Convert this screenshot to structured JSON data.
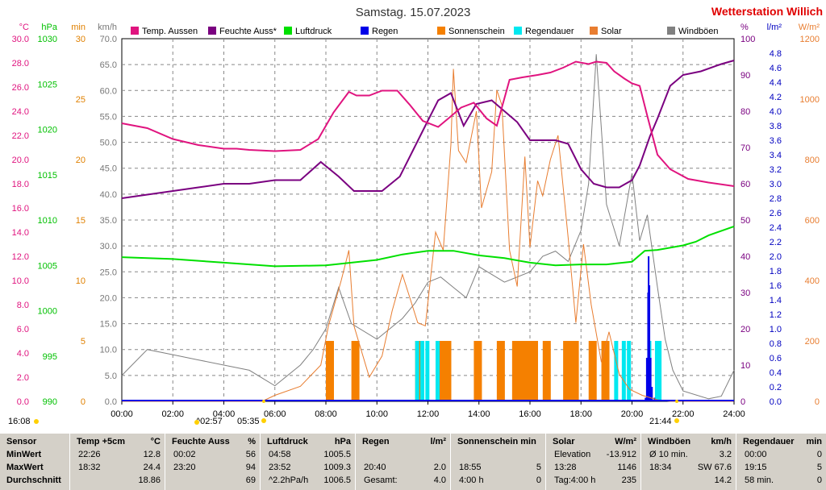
{
  "header": {
    "title": "Samstag. 15.07.2023",
    "station": "Wetterstation Willich"
  },
  "colors": {
    "temp": "#e0147f",
    "humidity": "#7a0080",
    "pressure": "#00e000",
    "rain": "#0000e8",
    "sunshine": "#f58000",
    "rainduration": "#00e8f0",
    "solar": "#e87d30",
    "gust": "#808080",
    "axis_c": "#e0147f",
    "axis_hpa": "#00c000",
    "axis_min": "#e08000",
    "axis_kmh": "#777777",
    "axis_pct": "#7a0080",
    "axis_lm2": "#0000c0",
    "axis_wm2": "#e87d30",
    "station": "#e00000"
  },
  "chart_data": {
    "type": "line",
    "legend": [
      {
        "label": "Temp. Aussen",
        "color": "#e0147f"
      },
      {
        "label": "Feuchte Auss*",
        "color": "#7a0080"
      },
      {
        "label": "Luftdruck",
        "color": "#00e000"
      },
      {
        "label": "Regen",
        "color": "#0000e8"
      },
      {
        "label": "Sonnenschein",
        "color": "#f58000"
      },
      {
        "label": "Regendauer",
        "color": "#00e8f0"
      },
      {
        "label": "Solar",
        "color": "#e87d30"
      },
      {
        "label": "Windböen",
        "color": "#808080"
      }
    ],
    "axes": {
      "c": {
        "unit": "°C",
        "ticks": [
          "0.0",
          "2.0",
          "4.0",
          "6.0",
          "8.0",
          "10.0",
          "12.0",
          "14.0",
          "16.0",
          "18.0",
          "20.0",
          "22.0",
          "24.0",
          "26.0",
          "28.0",
          "30.0"
        ]
      },
      "hpa": {
        "unit": "hPa",
        "ticks": [
          "990",
          "995",
          "1000",
          "1005",
          "1010",
          "1015",
          "1020",
          "1025",
          "1030"
        ]
      },
      "min": {
        "unit": "min",
        "ticks": [
          "0",
          "5",
          "10",
          "15",
          "20",
          "25",
          "30"
        ]
      },
      "kmh": {
        "unit": "km/h",
        "ticks": [
          "0.0",
          "5.0",
          "10.0",
          "15.0",
          "20.0",
          "25.0",
          "30.0",
          "35.0",
          "40.0",
          "45.0",
          "50.0",
          "55.0",
          "60.0",
          "65.0",
          "70.0"
        ]
      },
      "pct": {
        "unit": "%",
        "ticks": [
          "0",
          "10",
          "20",
          "30",
          "40",
          "50",
          "60",
          "70",
          "80",
          "90",
          "100"
        ]
      },
      "lm2": {
        "unit": "l/m²",
        "ticks": [
          "0.0",
          "0.2",
          "0.4",
          "0.6",
          "0.8",
          "1.0",
          "1.2",
          "1.4",
          "1.6",
          "1.8",
          "2.0",
          "2.2",
          "2.4",
          "2.6",
          "2.8",
          "3.0",
          "3.2",
          "3.4",
          "3.6",
          "3.8",
          "4.0",
          "4.2",
          "4.4",
          "4.6",
          "4.8"
        ]
      },
      "wm2": {
        "unit": "W/m²",
        "ticks": [
          "0",
          "200",
          "400",
          "600",
          "800",
          "1000",
          "1200"
        ]
      }
    },
    "x_ticks": [
      "00:00",
      "02:00",
      "04:00",
      "06:00",
      "08:00",
      "10:00",
      "12:00",
      "14:00",
      "16:00",
      "18:00",
      "20:00",
      "22:00",
      "24:00"
    ],
    "x_range_hours": [
      0,
      24
    ],
    "grid": true,
    "sun_events": {
      "sunrise": "05:35",
      "sunset": "21:44",
      "dawn": "^02:57",
      "dusk_left": "16:08"
    },
    "series": [
      {
        "name": "Temp. Aussen",
        "axis": "c",
        "x": [
          0,
          1,
          2,
          3,
          4,
          4.5,
          5,
          6,
          7,
          7.7,
          8.3,
          8.9,
          9.2,
          9.7,
          10.2,
          10.8,
          11.3,
          11.8,
          12.4,
          12.8,
          13.3,
          13.8,
          14.3,
          14.7,
          15.2,
          15.7,
          16.3,
          16.8,
          17.3,
          17.8,
          18.3,
          18.6,
          19.0,
          19.3,
          19.7,
          20.0,
          20.3,
          20.6,
          21.0,
          21.5,
          22.2,
          23,
          24
        ],
        "y": [
          23.0,
          22.6,
          21.7,
          21.2,
          20.9,
          20.9,
          20.8,
          20.7,
          20.8,
          21.7,
          23.9,
          25.6,
          25.3,
          25.3,
          25.7,
          25.7,
          24.5,
          23.2,
          22.7,
          23.4,
          24.3,
          24.7,
          23.4,
          22.8,
          26.6,
          26.8,
          27.0,
          27.2,
          27.6,
          28.1,
          27.9,
          28.1,
          28.0,
          27.3,
          26.7,
          26.3,
          26.1,
          23.6,
          20.4,
          19.2,
          18.4,
          18.1,
          17.8
        ]
      },
      {
        "name": "Feuchte Auss*",
        "axis": "pct",
        "x": [
          0,
          1,
          2,
          3,
          4,
          5,
          6,
          7,
          7.8,
          8.5,
          9.1,
          9.6,
          10.2,
          10.9,
          11.4,
          11.9,
          12.4,
          12.9,
          13.4,
          13.9,
          14.5,
          15.0,
          15.5,
          16.0,
          16.5,
          17.0,
          17.5,
          18.0,
          18.5,
          19.0,
          19.5,
          20.0,
          20.3,
          20.7,
          21.0,
          21.5,
          22.0,
          22.7,
          23.5,
          24
        ],
        "y": [
          56,
          57,
          58,
          59,
          60,
          60,
          61,
          61,
          66,
          62,
          58,
          58,
          58,
          62,
          69,
          76,
          83,
          85,
          76,
          82,
          83,
          80,
          77,
          72,
          72,
          72,
          71,
          64,
          60,
          59,
          59,
          61,
          65,
          73,
          78,
          87,
          90,
          91,
          93,
          94
        ]
      },
      {
        "name": "Luftdruck",
        "axis": "hpa",
        "x": [
          0,
          2,
          4,
          6,
          8,
          10,
          11,
          12,
          13,
          14,
          15,
          16,
          17,
          18,
          19,
          20,
          20.5,
          21,
          22,
          22.5,
          23,
          24
        ],
        "y": [
          1005.9,
          1005.7,
          1005.3,
          1004.9,
          1005.0,
          1005.6,
          1006.2,
          1006.6,
          1006.6,
          1006.1,
          1005.8,
          1005.3,
          1005.0,
          1005.1,
          1005.1,
          1005.4,
          1006.6,
          1006.7,
          1007.2,
          1007.6,
          1008.3,
          1009.3
        ]
      },
      {
        "name": "Regen",
        "axis": "lm2",
        "x": [
          20.5,
          20.55,
          20.6,
          20.62,
          20.65,
          20.7,
          20.75,
          20.85
        ],
        "y": [
          0.05,
          0.6,
          1.5,
          2.0,
          1.6,
          0.6,
          0.2,
          0.05
        ]
      },
      {
        "name": "Sonnenschein",
        "axis": "min",
        "x": [
          8.0,
          9.0,
          11.5,
          12.3,
          12.6,
          13.8,
          14.7,
          15.3,
          15.5,
          15.8,
          16.0,
          16.5,
          17.3,
          17.6,
          18.3,
          18.8
        ],
        "y": [
          5,
          5,
          5,
          5,
          5,
          5,
          5,
          5,
          5,
          5,
          5,
          5,
          5,
          5,
          5,
          5
        ]
      },
      {
        "name": "Regendauer",
        "axis": "min",
        "x": [
          11.5,
          11.7,
          11.9,
          12.3,
          19.3,
          19.6,
          19.8,
          20.6,
          20.9,
          21.0
        ],
        "y": [
          5,
          5,
          5,
          5,
          5,
          5,
          5,
          5,
          5,
          5
        ]
      },
      {
        "name": "Solar",
        "axis": "wm2",
        "x": [
          0,
          5.5,
          6,
          7,
          7.8,
          8.1,
          8.6,
          8.9,
          9.1,
          9.7,
          10.2,
          10.6,
          11.0,
          11.6,
          11.9,
          12.3,
          12.6,
          12.9,
          13.0,
          13.2,
          13.5,
          13.9,
          14.1,
          14.5,
          14.7,
          14.9,
          15.2,
          15.5,
          15.8,
          16.0,
          16.3,
          16.5,
          16.8,
          17.1,
          17.5,
          17.8,
          18.1,
          18.4,
          18.8,
          19.1,
          19.5,
          19.9,
          20.4,
          21.0,
          21.5,
          24
        ],
        "y": [
          0,
          0,
          20,
          50,
          120,
          250,
          400,
          500,
          250,
          80,
          150,
          300,
          420,
          260,
          250,
          560,
          500,
          850,
          1100,
          830,
          790,
          960,
          640,
          760,
          1030,
          980,
          500,
          380,
          810,
          510,
          730,
          680,
          800,
          880,
          540,
          260,
          520,
          320,
          130,
          230,
          90,
          40,
          20,
          5,
          0,
          0
        ]
      },
      {
        "name": "Windböen",
        "axis": "kmh",
        "x": [
          0,
          1,
          2,
          3,
          4,
          5,
          6,
          7,
          7.5,
          8,
          8.5,
          9,
          10,
          11,
          11.5,
          12,
          12.5,
          13,
          13.5,
          14,
          15,
          16,
          16.5,
          17,
          17.5,
          18,
          18.3,
          18.6,
          19,
          19.5,
          20,
          20.3,
          20.6,
          21,
          21.3,
          21.6,
          22,
          23,
          23.5,
          24
        ],
        "y": [
          5,
          10,
          9,
          8,
          7,
          6,
          3,
          7,
          10,
          14,
          22,
          15,
          12,
          16,
          19,
          23,
          24,
          22,
          20,
          26,
          23,
          25,
          28,
          29,
          27,
          33,
          42,
          67,
          38,
          30,
          44,
          31,
          36,
          22,
          12,
          6,
          2,
          0.5,
          1,
          6
        ]
      }
    ]
  },
  "table": {
    "rows": [
      "Sensor",
      "MinWert",
      "MaxWert",
      "Durchschnitt"
    ],
    "columns": [
      {
        "title": "Temp +5cm",
        "unit": "°C",
        "cells": [
          [
            "22:26",
            "12.8"
          ],
          [
            "18:32",
            "24.4"
          ],
          [
            "",
            "18.86"
          ]
        ]
      },
      {
        "title": "Feuchte Auss",
        "unit": "%",
        "cells": [
          [
            "00:02",
            "56"
          ],
          [
            "23:20",
            "94"
          ],
          [
            "",
            "69"
          ]
        ]
      },
      {
        "title": "Luftdruck",
        "unit": "hPa",
        "cells": [
          [
            "04:58",
            "1005.5"
          ],
          [
            "23:52",
            "1009.3"
          ],
          [
            "^2.2hPa/h",
            "1006.5"
          ]
        ]
      },
      {
        "title": "Regen",
        "unit": "l/m²",
        "cells": [
          [
            "",
            ""
          ],
          [
            "20:40",
            "2.0"
          ],
          [
            "Gesamt:",
            "4.0"
          ]
        ]
      },
      {
        "title": "Sonnenschein min",
        "unit": "",
        "cells": [
          [
            "",
            ""
          ],
          [
            "18:55",
            "5"
          ],
          [
            "4:00 h",
            "0"
          ]
        ]
      },
      {
        "title": "Solar",
        "unit": "W/m²",
        "cells": [
          [
            "Elevation",
            "-13.912"
          ],
          [
            "13:28",
            "1146"
          ],
          [
            "Tag:4:00 h",
            "235"
          ]
        ]
      },
      {
        "title": "Windböen",
        "unit": "km/h",
        "cells": [
          [
            "Ø 10 min.",
            "3.2"
          ],
          [
            "18:34",
            "SW 67.6"
          ],
          [
            "",
            "14.2"
          ]
        ]
      },
      {
        "title": "Regendauer",
        "unit": "min",
        "cells": [
          [
            "00:00",
            "0"
          ],
          [
            "19:15",
            "5"
          ],
          [
            "58 min.",
            "0"
          ]
        ]
      }
    ]
  }
}
